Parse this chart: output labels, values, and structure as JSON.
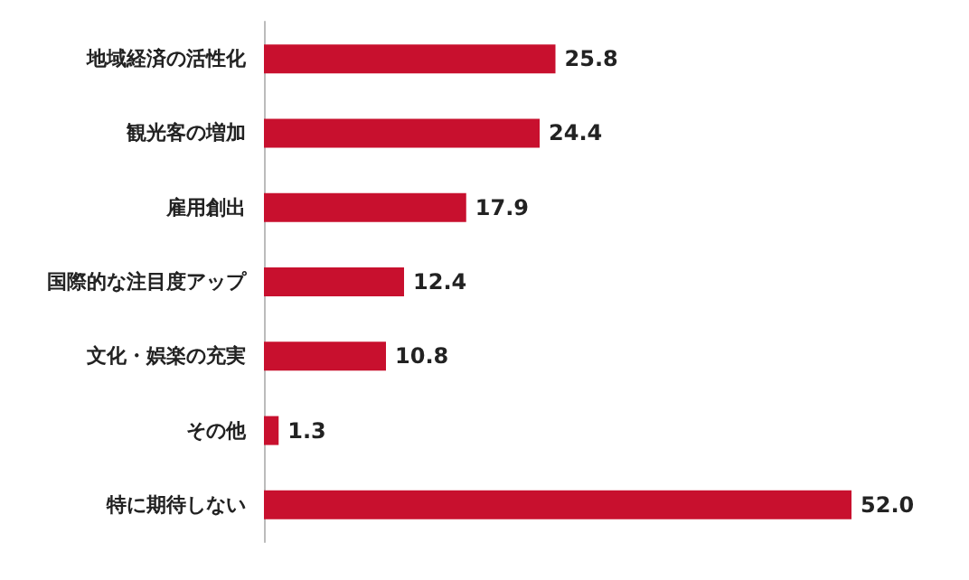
{
  "chart_data": {
    "type": "bar",
    "orientation": "horizontal",
    "categories": [
      "地域経済の活性化",
      "観光客の増加",
      "雇用創出",
      "国際的な注目度アップ",
      "文化・娯楽の充実",
      "その他",
      "特に期待しない"
    ],
    "values": [
      25.8,
      24.4,
      17.9,
      12.4,
      10.8,
      1.3,
      52.0
    ],
    "value_labels": [
      "25.8",
      "24.4",
      "17.9",
      "12.4",
      "10.8",
      "1.3",
      "52.0"
    ],
    "color": "#c8102e"
  }
}
